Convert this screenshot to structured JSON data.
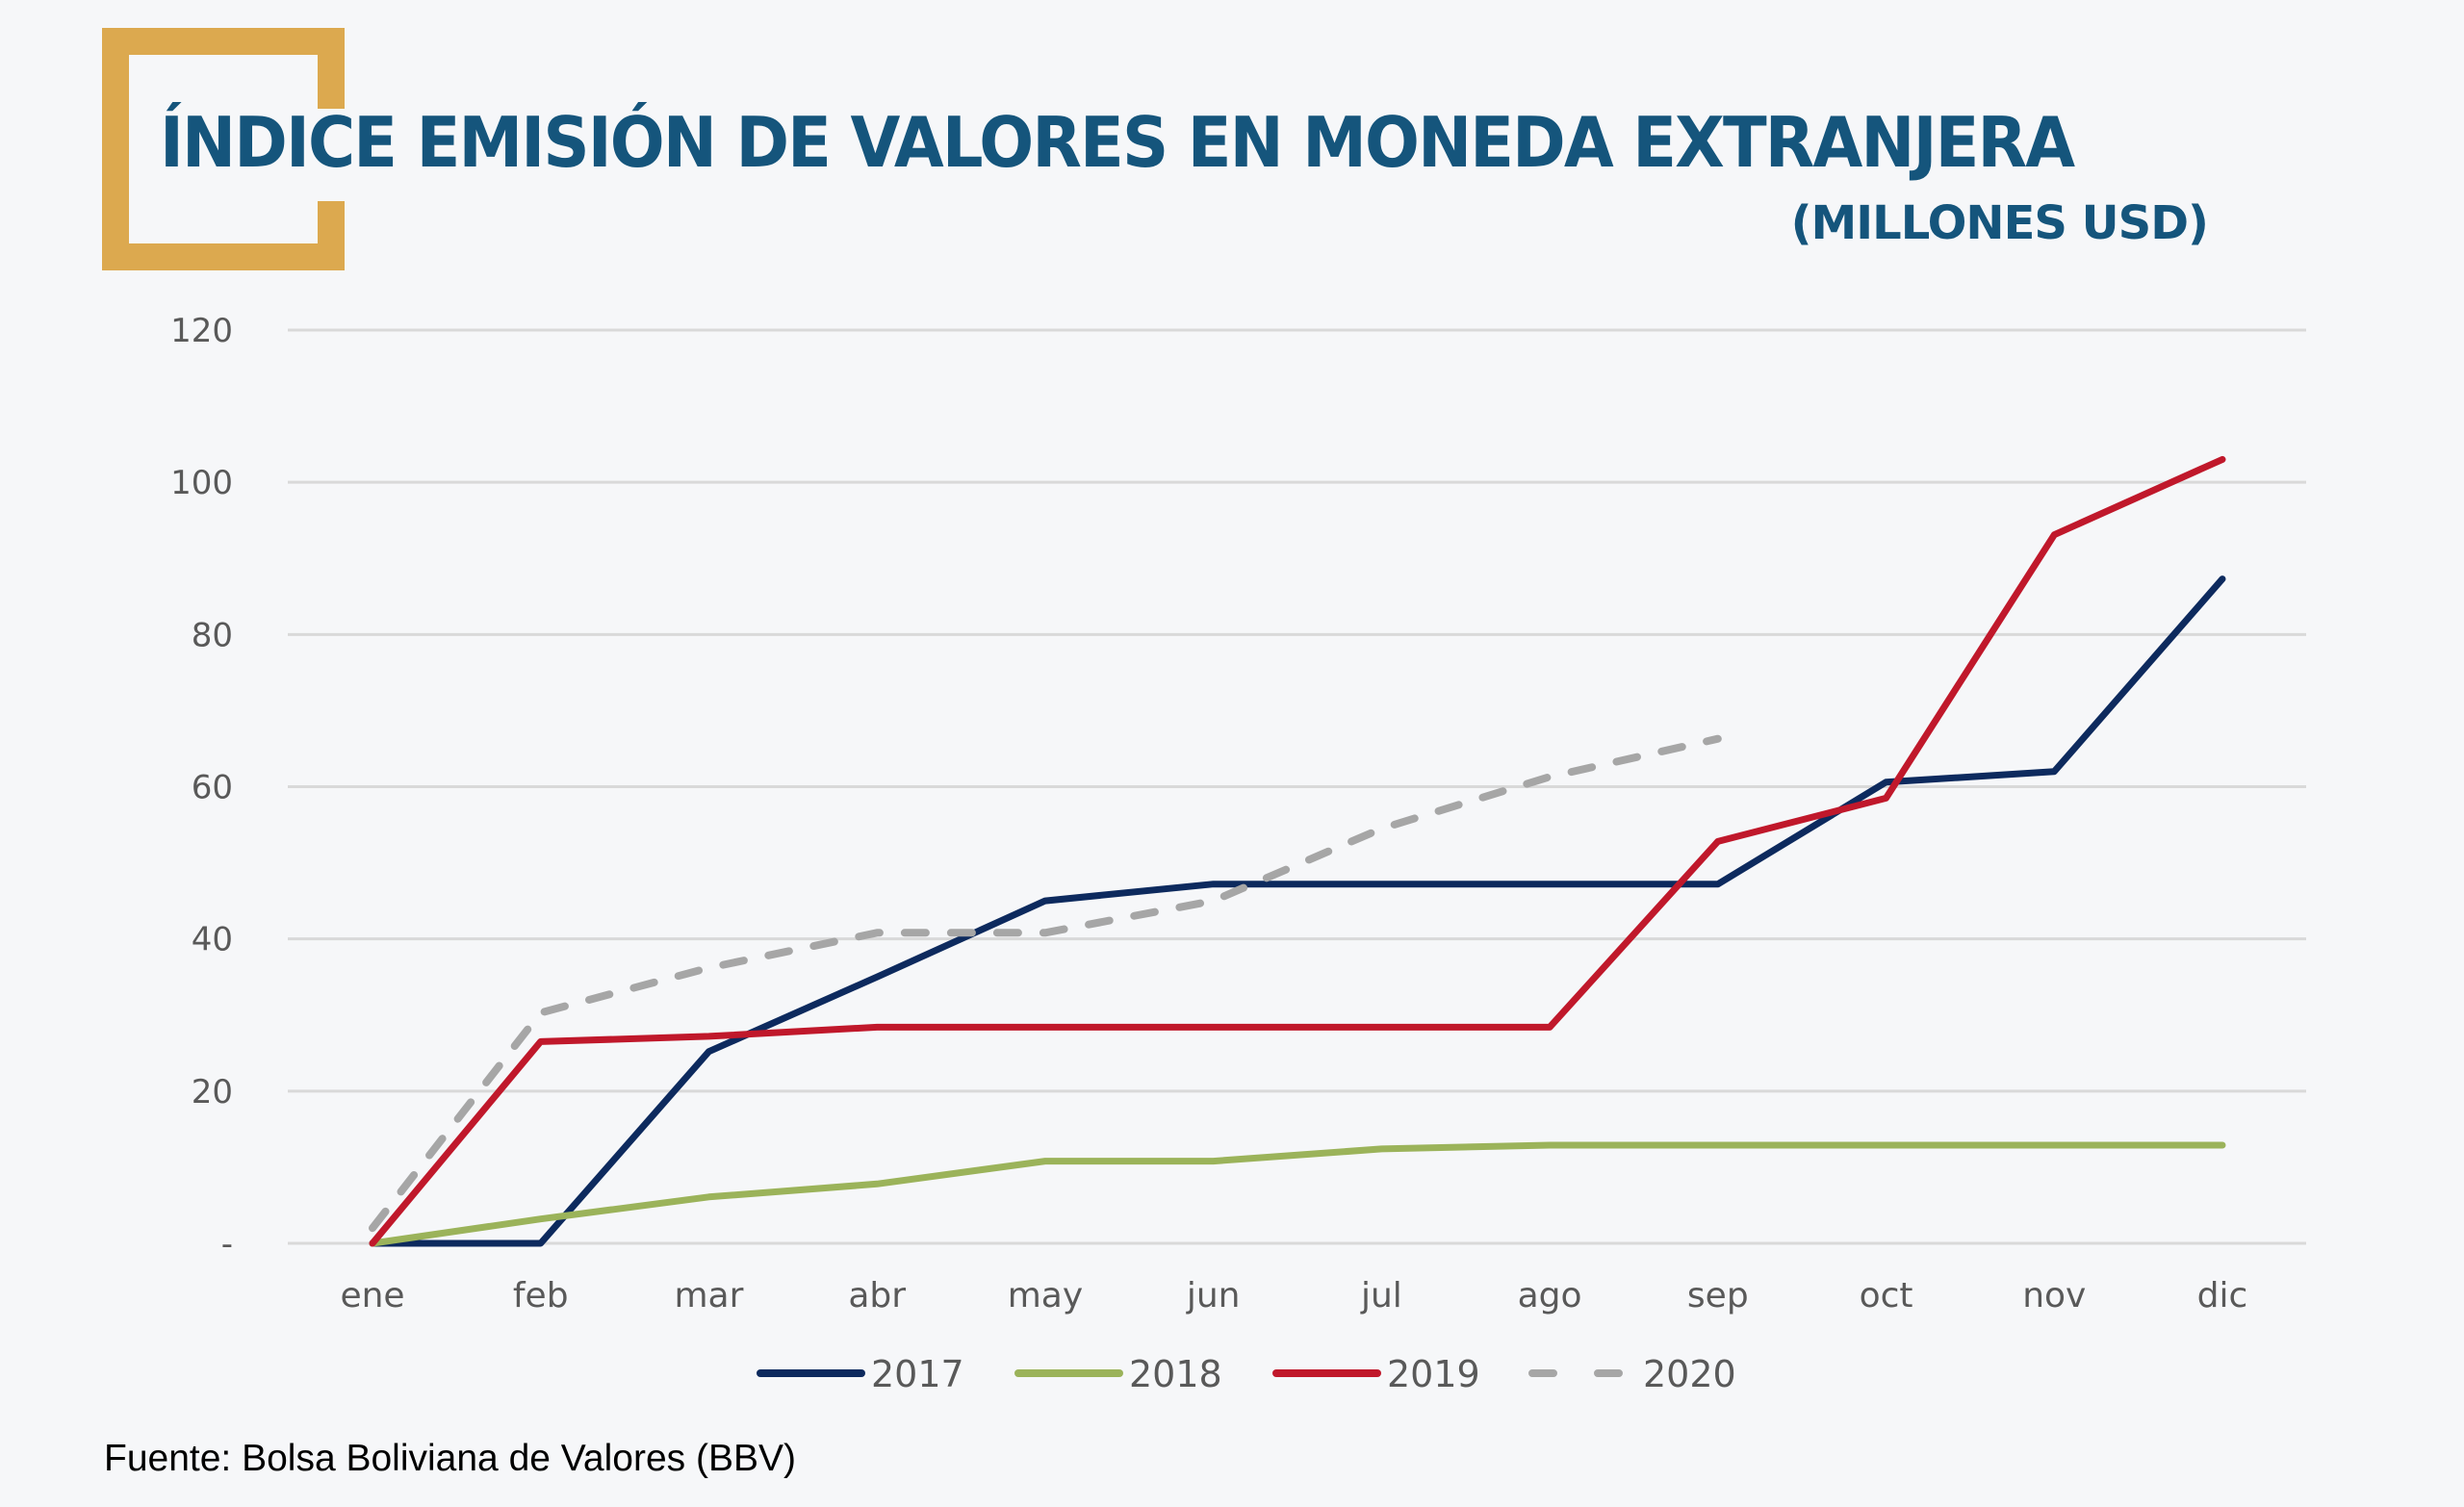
{
  "header": {
    "title": "ÍNDICE EMISIÓN DE VALORES EN MONEDA EXTRANJERA",
    "subtitle": "(MILLONES USD)",
    "accent_color": "#dca94f",
    "title_color": "#15557c"
  },
  "footer": {
    "source": "Fuente: Bolsa Boliviana de Valores (BBV)"
  },
  "chart_data": {
    "type": "line",
    "title": "ÍNDICE EMISIÓN DE VALORES EN MONEDA EXTRANJERA",
    "subtitle": "(MILLONES USD)",
    "xlabel": "",
    "ylabel": "",
    "categories": [
      "ene",
      "feb",
      "mar",
      "abr",
      "may",
      "jun",
      "jul",
      "ago",
      "sep",
      "oct",
      "nov",
      "dic"
    ],
    "ylim": [
      0,
      120
    ],
    "yticks": [
      0,
      20,
      40,
      60,
      80,
      100,
      120
    ],
    "ytick_labels": [
      "-",
      "20",
      "40",
      "60",
      "80",
      "100",
      "120"
    ],
    "grid": true,
    "legend_position": "bottom",
    "series": [
      {
        "name": "2017",
        "color": "#0d2a5e",
        "dashed": false,
        "values": [
          0,
          0,
          25.2,
          35,
          45,
          47.2,
          47.2,
          47.2,
          47.2,
          60.6,
          62,
          87.3
        ]
      },
      {
        "name": "2018",
        "color": "#9bb35a",
        "dashed": false,
        "values": [
          0,
          3.2,
          6.1,
          7.8,
          10.8,
          10.8,
          12.4,
          12.9,
          12.9,
          12.9,
          12.9,
          12.9
        ]
      },
      {
        "name": "2019",
        "color": "#c0182b",
        "dashed": false,
        "values": [
          0,
          26.5,
          27.2,
          28.4,
          28.4,
          28.4,
          28.4,
          28.4,
          52.8,
          58.5,
          93.1,
          103
        ]
      },
      {
        "name": "2020",
        "color": "#a6a6a6",
        "dashed": true,
        "values": [
          2,
          30.3,
          36.2,
          40.8,
          40.8,
          45,
          54.5,
          61.3,
          66.3,
          null,
          null,
          null
        ]
      }
    ]
  }
}
